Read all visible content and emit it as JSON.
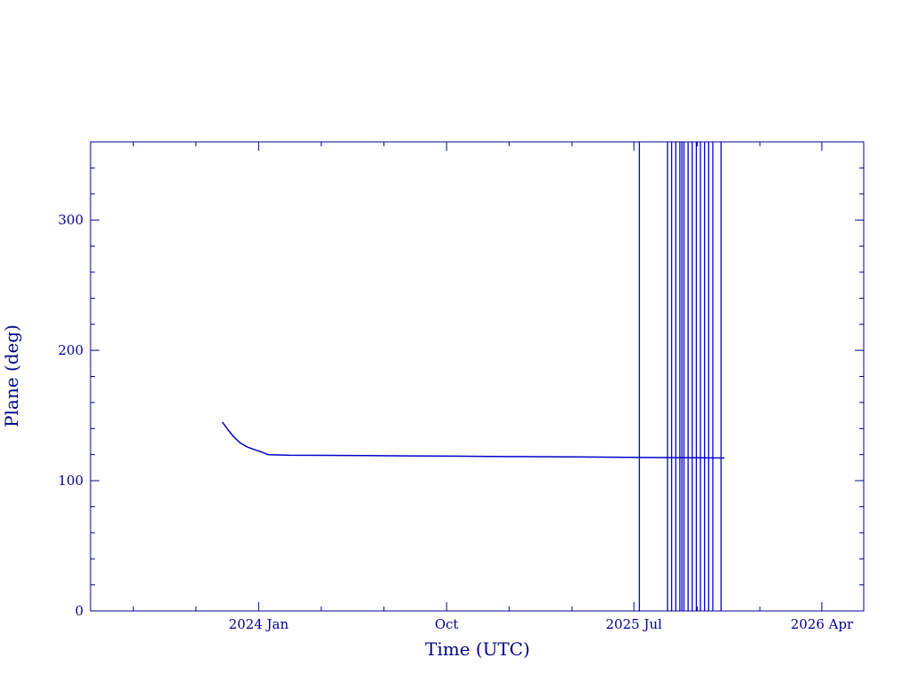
{
  "chart_data": {
    "type": "line",
    "title": "",
    "xlabel": "Time (UTC)",
    "ylabel": "Plane (deg)",
    "x_axis_type": "date",
    "xlim": [
      "2023-05-01",
      "2026-06-01"
    ],
    "ylim": [
      0,
      360
    ],
    "x_ticks": [
      {
        "label": "2024 Jan",
        "value": "2024-01-01"
      },
      {
        "label": "Oct",
        "value": "2024-10-01"
      },
      {
        "label": "2025 Jul",
        "value": "2025-07-01"
      },
      {
        "label": "2026 Apr",
        "value": "2026-04-01"
      }
    ],
    "y_ticks": [
      {
        "label": "0",
        "value": 0
      },
      {
        "label": "100",
        "value": 100
      },
      {
        "label": "200",
        "value": 200
      },
      {
        "label": "300",
        "value": 300
      }
    ],
    "grid": false,
    "color": "#0000cd",
    "series": [
      {
        "x": [
          "2023-11-09",
          "2023-11-16",
          "2023-11-25",
          "2023-12-05",
          "2023-12-15",
          "2023-12-25",
          "2024-01-05",
          "2024-01-15",
          "2024-02-15",
          "2024-04-01",
          "2024-06-01",
          "2024-08-01",
          "2024-10-01",
          "2024-12-01",
          "2025-02-01",
          "2025-04-01",
          "2025-06-01",
          "2025-08-01",
          "2025-10-01",
          "2025-11-10"
        ],
        "y": [
          145,
          140,
          134,
          129,
          126,
          124,
          122,
          120,
          119.5,
          119.4,
          119.2,
          119,
          118.8,
          118.6,
          118.4,
          118.2,
          118,
          117.7,
          117.5,
          117.4
        ]
      }
    ],
    "vertical_lines": [
      "2025-07-09",
      "2025-08-19",
      "2025-08-25",
      "2025-08-31",
      "2025-09-06",
      "2025-09-09",
      "2025-09-12",
      "2025-09-18",
      "2025-09-24",
      "2025-09-30",
      "2025-10-06",
      "2025-10-12",
      "2025-10-18",
      "2025-10-24",
      "2025-11-05"
    ]
  }
}
